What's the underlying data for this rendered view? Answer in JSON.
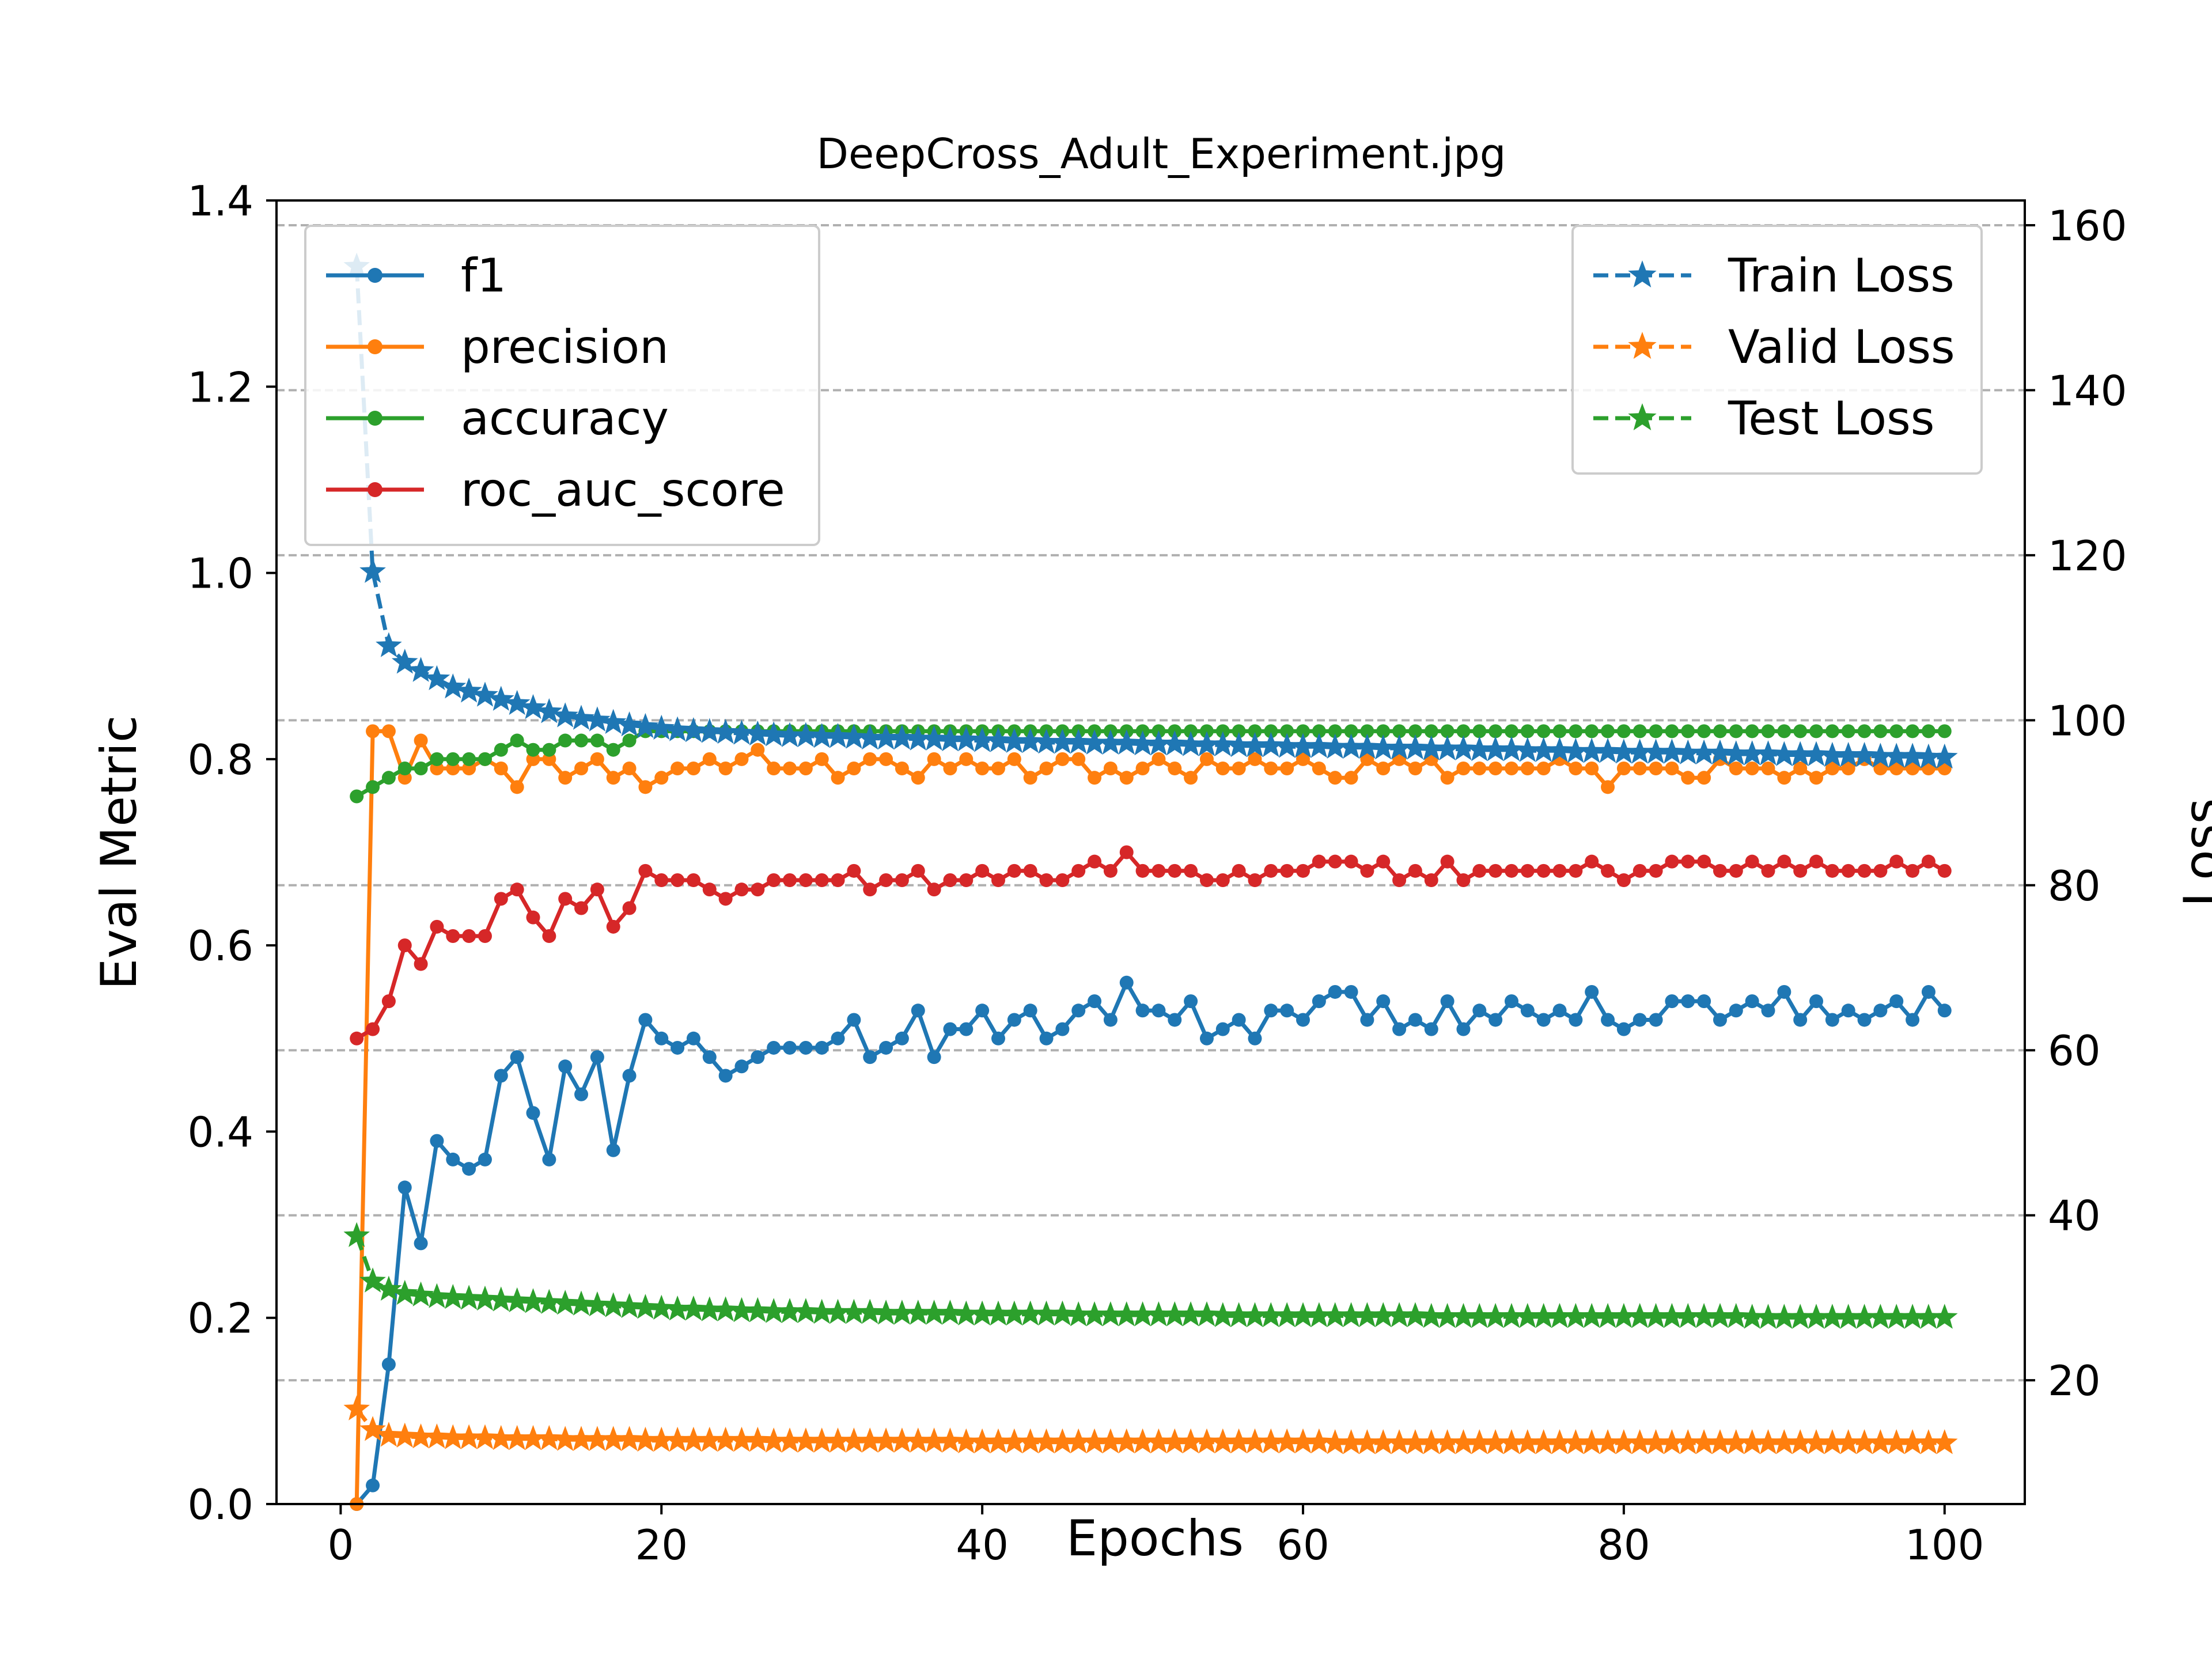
{
  "chart_data": {
    "type": "line",
    "title": "DeepCross_Adult_Experiment.jpg",
    "xlabel": "Epochs",
    "ylabel_left": "Eval Metric",
    "ylabel_right": "Loss",
    "xlim": [
      -4,
      105
    ],
    "ylim_left": [
      0,
      1.4
    ],
    "ylim_right": [
      5,
      163
    ],
    "x_ticks": [
      0,
      20,
      40,
      60,
      80,
      100
    ],
    "y_ticks_left": [
      "0.0",
      "0.2",
      "0.4",
      "0.6",
      "0.8",
      "1.0",
      "1.2",
      "1.4"
    ],
    "y_ticks_right": [
      "20",
      "40",
      "60",
      "80",
      "100",
      "120",
      "140",
      "160"
    ],
    "grid": "horizontal dashed, right axis",
    "legend_left": {
      "placement": "upper-left"
    },
    "legend_right": {
      "placement": "upper-right"
    },
    "x": [
      1,
      2,
      3,
      4,
      5,
      6,
      7,
      8,
      9,
      10,
      11,
      12,
      13,
      14,
      15,
      16,
      17,
      18,
      19,
      20,
      21,
      22,
      23,
      24,
      25,
      26,
      27,
      28,
      29,
      30,
      31,
      32,
      33,
      34,
      35,
      36,
      37,
      38,
      39,
      40,
      41,
      42,
      43,
      44,
      45,
      46,
      47,
      48,
      49,
      50,
      51,
      52,
      53,
      54,
      55,
      56,
      57,
      58,
      59,
      60,
      61,
      62,
      63,
      64,
      65,
      66,
      67,
      68,
      69,
      70,
      71,
      72,
      73,
      74,
      75,
      76,
      77,
      78,
      79,
      80,
      81,
      82,
      83,
      84,
      85,
      86,
      87,
      88,
      89,
      90,
      91,
      92,
      93,
      94,
      95,
      96,
      97,
      98,
      99,
      100
    ],
    "metric_series": [
      {
        "name": "f1",
        "color": "#1f77b4",
        "values": [
          0.0,
          0.02,
          0.15,
          0.34,
          0.28,
          0.39,
          0.37,
          0.36,
          0.37,
          0.46,
          0.48,
          0.42,
          0.37,
          0.47,
          0.44,
          0.48,
          0.38,
          0.46,
          0.52,
          0.5,
          0.49,
          0.5,
          0.48,
          0.46,
          0.47,
          0.48,
          0.49,
          0.49,
          0.49,
          0.49,
          0.5,
          0.52,
          0.48,
          0.49,
          0.5,
          0.53,
          0.48,
          0.51,
          0.51,
          0.53,
          0.5,
          0.52,
          0.53,
          0.5,
          0.51,
          0.53,
          0.54,
          0.52,
          0.56,
          0.53,
          0.53,
          0.52,
          0.54,
          0.5,
          0.51,
          0.52,
          0.5,
          0.53,
          0.53,
          0.52,
          0.54,
          0.55,
          0.55,
          0.52,
          0.54,
          0.51,
          0.52,
          0.51,
          0.54,
          0.51,
          0.53,
          0.52,
          0.54,
          0.53,
          0.52,
          0.53,
          0.52,
          0.55,
          0.52,
          0.51,
          0.52,
          0.52,
          0.54,
          0.54,
          0.54,
          0.52,
          0.53,
          0.54,
          0.53,
          0.55,
          0.52,
          0.54,
          0.52,
          0.53,
          0.52,
          0.53,
          0.54,
          0.52,
          0.55,
          0.53
        ]
      },
      {
        "name": "precision",
        "color": "#ff7f0e",
        "values": [
          0.0,
          0.83,
          0.83,
          0.78,
          0.82,
          0.79,
          0.79,
          0.79,
          0.8,
          0.79,
          0.77,
          0.8,
          0.8,
          0.78,
          0.79,
          0.8,
          0.78,
          0.79,
          0.77,
          0.78,
          0.79,
          0.79,
          0.8,
          0.79,
          0.8,
          0.81,
          0.79,
          0.79,
          0.79,
          0.8,
          0.78,
          0.79,
          0.8,
          0.8,
          0.79,
          0.78,
          0.8,
          0.79,
          0.8,
          0.79,
          0.79,
          0.8,
          0.78,
          0.79,
          0.8,
          0.8,
          0.78,
          0.79,
          0.78,
          0.79,
          0.8,
          0.79,
          0.78,
          0.8,
          0.79,
          0.79,
          0.8,
          0.79,
          0.79,
          0.8,
          0.79,
          0.78,
          0.78,
          0.8,
          0.79,
          0.8,
          0.79,
          0.8,
          0.78,
          0.79,
          0.79,
          0.79,
          0.79,
          0.79,
          0.79,
          0.8,
          0.79,
          0.79,
          0.77,
          0.79,
          0.79,
          0.79,
          0.79,
          0.78,
          0.78,
          0.8,
          0.79,
          0.79,
          0.79,
          0.78,
          0.79,
          0.78,
          0.79,
          0.79,
          0.8,
          0.79,
          0.79,
          0.79,
          0.79,
          0.79
        ]
      },
      {
        "name": "accuracy",
        "color": "#2ca02c",
        "values": [
          0.76,
          0.77,
          0.78,
          0.79,
          0.79,
          0.8,
          0.8,
          0.8,
          0.8,
          0.81,
          0.82,
          0.81,
          0.81,
          0.82,
          0.82,
          0.82,
          0.81,
          0.82,
          0.83,
          0.83,
          0.83,
          0.83,
          0.83,
          0.83,
          0.83,
          0.83,
          0.83,
          0.83,
          0.83,
          0.83,
          0.83,
          0.83,
          0.83,
          0.83,
          0.83,
          0.83,
          0.83,
          0.83,
          0.83,
          0.83,
          0.83,
          0.83,
          0.83,
          0.83,
          0.83,
          0.83,
          0.83,
          0.83,
          0.83,
          0.83,
          0.83,
          0.83,
          0.83,
          0.83,
          0.83,
          0.83,
          0.83,
          0.83,
          0.83,
          0.83,
          0.83,
          0.83,
          0.83,
          0.83,
          0.83,
          0.83,
          0.83,
          0.83,
          0.83,
          0.83,
          0.83,
          0.83,
          0.83,
          0.83,
          0.83,
          0.83,
          0.83,
          0.83,
          0.83,
          0.83,
          0.83,
          0.83,
          0.83,
          0.83,
          0.83,
          0.83,
          0.83,
          0.83,
          0.83,
          0.83,
          0.83,
          0.83,
          0.83,
          0.83,
          0.83,
          0.83,
          0.83,
          0.83,
          0.83,
          0.83
        ]
      },
      {
        "name": "roc_auc_score",
        "color": "#d62728",
        "values": [
          0.5,
          0.51,
          0.54,
          0.6,
          0.58,
          0.62,
          0.61,
          0.61,
          0.61,
          0.65,
          0.66,
          0.63,
          0.61,
          0.65,
          0.64,
          0.66,
          0.62,
          0.64,
          0.68,
          0.67,
          0.67,
          0.67,
          0.66,
          0.65,
          0.66,
          0.66,
          0.67,
          0.67,
          0.67,
          0.67,
          0.67,
          0.68,
          0.66,
          0.67,
          0.67,
          0.68,
          0.66,
          0.67,
          0.67,
          0.68,
          0.67,
          0.68,
          0.68,
          0.67,
          0.67,
          0.68,
          0.69,
          0.68,
          0.7,
          0.68,
          0.68,
          0.68,
          0.68,
          0.67,
          0.67,
          0.68,
          0.67,
          0.68,
          0.68,
          0.68,
          0.69,
          0.69,
          0.69,
          0.68,
          0.69,
          0.67,
          0.68,
          0.67,
          0.69,
          0.67,
          0.68,
          0.68,
          0.68,
          0.68,
          0.68,
          0.68,
          0.68,
          0.69,
          0.68,
          0.67,
          0.68,
          0.68,
          0.69,
          0.69,
          0.69,
          0.68,
          0.68,
          0.69,
          0.68,
          0.69,
          0.68,
          0.69,
          0.68,
          0.68,
          0.68,
          0.68,
          0.69,
          0.68,
          0.69,
          0.68
        ]
      }
    ],
    "loss_series": [
      {
        "name": "Train Loss",
        "color": "#1f77b4",
        "values": [
          155,
          118,
          109,
          107,
          106,
          105,
          104,
          103.5,
          103,
          102.5,
          102,
          101.5,
          101,
          100.5,
          100.2,
          100,
          99.7,
          99.4,
          99.2,
          99,
          98.8,
          98.7,
          98.6,
          98.5,
          98.4,
          98.3,
          98.2,
          98.1,
          98.1,
          98,
          98,
          97.9,
          97.8,
          97.8,
          97.8,
          97.7,
          97.7,
          97.6,
          97.6,
          97.5,
          97.5,
          97.4,
          97.4,
          97.3,
          97.3,
          97.3,
          97.2,
          97.2,
          97.2,
          97.1,
          97.1,
          97.1,
          97,
          97,
          97,
          96.9,
          96.9,
          96.9,
          96.8,
          96.8,
          96.8,
          96.7,
          96.7,
          96.7,
          96.6,
          96.6,
          96.6,
          96.5,
          96.5,
          96.5,
          96.4,
          96.4,
          96.4,
          96.3,
          96.3,
          96.3,
          96.2,
          96.2,
          96.2,
          96.1,
          96.1,
          96.1,
          96.1,
          96,
          96,
          96,
          95.9,
          95.9,
          95.9,
          95.8,
          95.8,
          95.8,
          95.7,
          95.7,
          95.7,
          95.6,
          95.6,
          95.6,
          95.5,
          95.5
        ]
      },
      {
        "name": "Valid Loss",
        "color": "#ff7f0e",
        "values": [
          16.5,
          14,
          13.3,
          13.2,
          13.1,
          13.1,
          13,
          13,
          13,
          12.9,
          12.9,
          12.9,
          12.9,
          12.8,
          12.8,
          12.8,
          12.8,
          12.8,
          12.7,
          12.7,
          12.7,
          12.7,
          12.7,
          12.7,
          12.7,
          12.7,
          12.6,
          12.6,
          12.6,
          12.6,
          12.6,
          12.6,
          12.6,
          12.6,
          12.6,
          12.6,
          12.6,
          12.6,
          12.5,
          12.5,
          12.5,
          12.5,
          12.5,
          12.5,
          12.5,
          12.5,
          12.5,
          12.5,
          12.5,
          12.5,
          12.5,
          12.5,
          12.5,
          12.5,
          12.5,
          12.5,
          12.5,
          12.5,
          12.5,
          12.5,
          12.5,
          12.4,
          12.4,
          12.4,
          12.4,
          12.4,
          12.4,
          12.4,
          12.4,
          12.4,
          12.4,
          12.4,
          12.4,
          12.4,
          12.4,
          12.4,
          12.4,
          12.4,
          12.4,
          12.4,
          12.4,
          12.4,
          12.4,
          12.4,
          12.4,
          12.4,
          12.4,
          12.4,
          12.4,
          12.4,
          12.4,
          12.4,
          12.4,
          12.4,
          12.4,
          12.4,
          12.4,
          12.4,
          12.4,
          12.4
        ]
      },
      {
        "name": "Test Loss",
        "color": "#2ca02c",
        "values": [
          37.5,
          32,
          31,
          30.5,
          30.3,
          30.1,
          30,
          29.9,
          29.8,
          29.7,
          29.6,
          29.5,
          29.4,
          29.3,
          29.2,
          29.1,
          29,
          28.9,
          28.8,
          28.7,
          28.6,
          28.6,
          28.5,
          28.5,
          28.4,
          28.4,
          28.3,
          28.3,
          28.3,
          28.2,
          28.2,
          28.2,
          28.2,
          28.1,
          28.1,
          28.1,
          28.1,
          28.1,
          28,
          28,
          28,
          28,
          28,
          28,
          28,
          27.9,
          27.9,
          27.9,
          27.9,
          27.9,
          27.9,
          27.9,
          27.9,
          27.9,
          27.8,
          27.8,
          27.8,
          27.8,
          27.8,
          27.8,
          27.8,
          27.8,
          27.8,
          27.8,
          27.8,
          27.8,
          27.8,
          27.7,
          27.7,
          27.7,
          27.7,
          27.7,
          27.7,
          27.7,
          27.7,
          27.7,
          27.7,
          27.7,
          27.7,
          27.7,
          27.7,
          27.7,
          27.7,
          27.7,
          27.7,
          27.7,
          27.7,
          27.6,
          27.6,
          27.6,
          27.6,
          27.6,
          27.6,
          27.6,
          27.6,
          27.6,
          27.6,
          27.6,
          27.6,
          27.6
        ]
      }
    ]
  }
}
